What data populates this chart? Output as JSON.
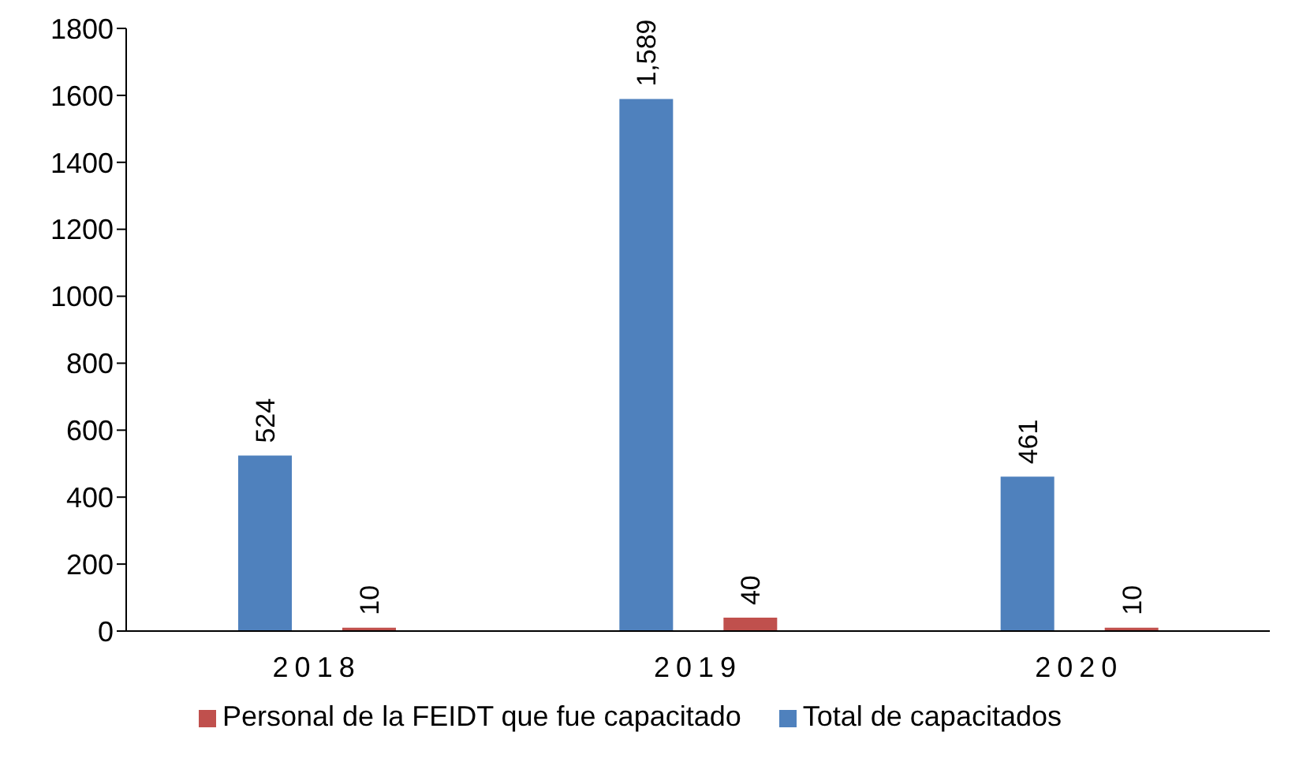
{
  "chart_data": {
    "type": "bar",
    "categories": [
      "2018",
      "2019",
      "2020"
    ],
    "series": [
      {
        "name": "Total de capacitados",
        "color": "#4f81bd",
        "values": [
          524,
          1589,
          461
        ],
        "value_labels": [
          "524",
          "1,589",
          "461"
        ]
      },
      {
        "name": "Personal de la FEIDT que fue capacitado",
        "color": "#c0504d",
        "values": [
          10,
          40,
          10
        ],
        "value_labels": [
          "10",
          "40",
          "10"
        ]
      }
    ],
    "ylim": [
      0,
      1800
    ],
    "yticks": [
      0,
      200,
      400,
      600,
      800,
      1000,
      1200,
      1400,
      1600,
      1800
    ],
    "grid": false,
    "legend": "bottom"
  }
}
